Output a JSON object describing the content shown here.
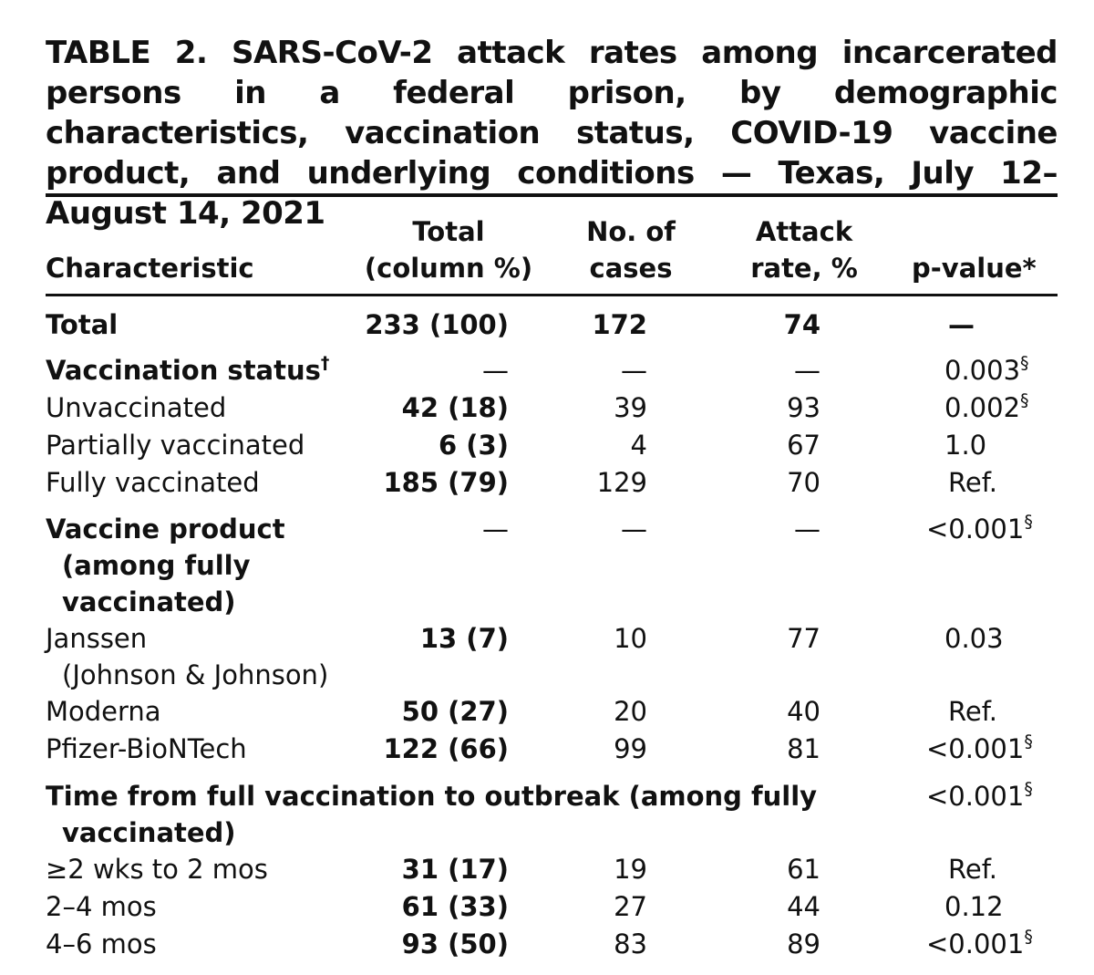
{
  "title": "TABLE 2. SARS-CoV-2 attack rates among incarcerated persons in a federal prison, by demographic characteristics, vaccination status, COVID-19 vaccine product, and underlying conditions — Texas, July 12–August 14, 2021",
  "columns": {
    "characteristic": "Characteristic",
    "total_line1": "Total",
    "total_line2": "(column %)",
    "cases_line1": "No. of",
    "cases_line2": "cases",
    "attack_line1": "Attack",
    "attack_line2": "rate, %",
    "pvalue": "p-value",
    "pvalue_mark": "*"
  },
  "rows": {
    "total": {
      "label": "Total",
      "total": "233 (100)",
      "cases": "172",
      "attack": "74",
      "p": "—"
    },
    "vacc_status": {
      "label": "Vaccination status",
      "mark": "†",
      "total": "—",
      "cases": "—",
      "attack": "—",
      "p": "0.003",
      "p_mark": "§"
    },
    "unvaccinated": {
      "label": "Unvaccinated",
      "total": "42 (18)",
      "cases": "39",
      "attack": "93",
      "p": "0.002",
      "p_mark": "§"
    },
    "partial": {
      "label": "Partially vaccinated",
      "total": "6 (3)",
      "cases": "4",
      "attack": "67",
      "p": "1.0"
    },
    "fully": {
      "label": "Fully vaccinated",
      "total": "185 (79)",
      "cases": "129",
      "attack": "70",
      "p": "Ref."
    },
    "product": {
      "label_line1": "Vaccine product",
      "label_line2": "(among fully",
      "label_line3": "vaccinated)",
      "total": "—",
      "cases": "—",
      "attack": "—",
      "p": "<0.001",
      "p_mark": "§"
    },
    "janssen": {
      "label_line1": "Janssen",
      "label_line2": "(Johnson & Johnson)",
      "total": "13 (7)",
      "cases": "10",
      "attack": "77",
      "p": "0.03"
    },
    "moderna": {
      "label": "Moderna",
      "total": "50 (27)",
      "cases": "20",
      "attack": "40",
      "p": "Ref."
    },
    "pfizer": {
      "label": "Pfizer-BioNTech",
      "total": "122 (66)",
      "cases": "99",
      "attack": "81",
      "p": "<0.001",
      "p_mark": "§"
    },
    "time": {
      "label_line1": "Time from full vaccination to outbreak (among fully",
      "label_line2": "vaccinated)",
      "p": "<0.001",
      "p_mark": "§"
    },
    "t1": {
      "label": "≥2 wks to 2 mos",
      "total": "31 (17)",
      "cases": "19",
      "attack": "61",
      "p": "Ref."
    },
    "t2": {
      "label": "2–4 mos",
      "total": "61 (33)",
      "cases": "27",
      "attack": "44",
      "p": "0.12"
    },
    "t3": {
      "label": "4–6 mos",
      "total": "93 (50)",
      "cases": "83",
      "attack": "89",
      "p": "<0.001",
      "p_mark": "§"
    }
  }
}
